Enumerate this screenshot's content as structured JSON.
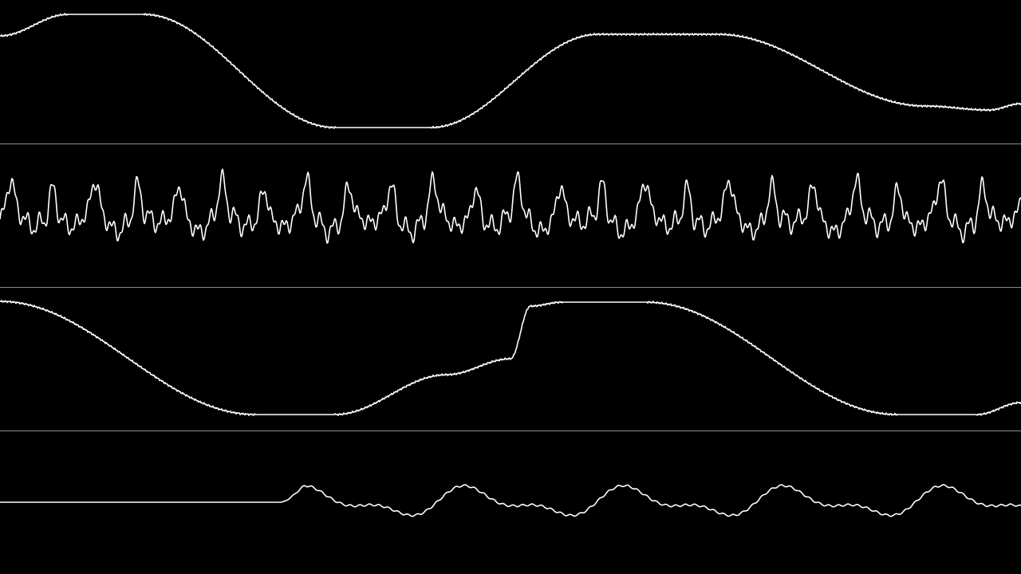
{
  "scope": {
    "channel_count": 4,
    "background_color": "#000000",
    "trace_color": "#ffffff",
    "divider_color": "#8a8a8a",
    "channels": [
      {
        "id": 1,
        "waveform": "slow-triangle-sweep"
      },
      {
        "id": 2,
        "waveform": "noisy-pulse"
      },
      {
        "id": 3,
        "waveform": "slow-triangle-sweep"
      },
      {
        "id": 4,
        "waveform": "delayed-sine-with-harmonics"
      }
    ]
  }
}
